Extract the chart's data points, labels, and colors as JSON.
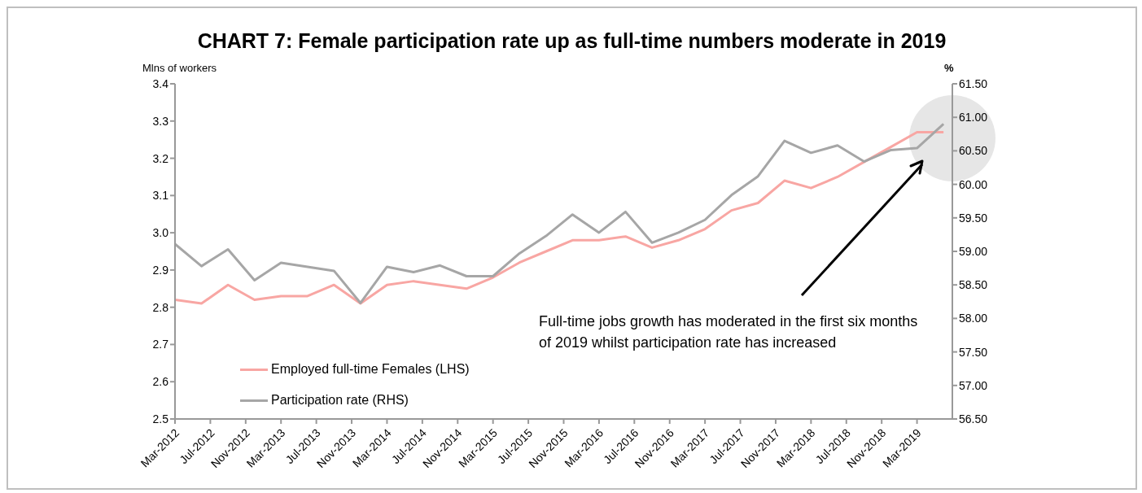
{
  "chart_data": {
    "type": "line",
    "title": "CHART 7: Female participation rate up as full-time numbers moderate in 2019",
    "ylabel": "Mlns of workers",
    "y2label": "%",
    "x": [
      "2012-03",
      "2012-06",
      "2012-09",
      "2012-12",
      "2013-03",
      "2013-06",
      "2013-09",
      "2013-12",
      "2014-03",
      "2014-06",
      "2014-09",
      "2014-12",
      "2015-03",
      "2015-06",
      "2015-09",
      "2015-12",
      "2016-03",
      "2016-06",
      "2016-09",
      "2016-12",
      "2017-03",
      "2017-06",
      "2017-09",
      "2017-12",
      "2018-03",
      "2018-06",
      "2018-09",
      "2018-12",
      "2019-03",
      "2019-06"
    ],
    "series": [
      {
        "name": "Employed full-time Females (LHS)",
        "color": "#f8a6a3",
        "values": [
          2.82,
          2.81,
          2.86,
          2.82,
          2.83,
          2.83,
          2.86,
          2.81,
          2.86,
          2.87,
          2.86,
          2.85,
          2.88,
          2.92,
          2.95,
          2.98,
          2.98,
          2.99,
          2.96,
          2.98,
          3.01,
          3.06,
          3.08,
          3.14,
          3.12,
          3.15,
          3.19,
          3.23,
          3.27,
          3.27
        ]
      },
      {
        "name": "Participation rate (RHS)",
        "color": "#a6a6a6",
        "axis": "y2",
        "values": [
          59.11,
          58.78,
          59.03,
          58.57,
          58.83,
          58.77,
          58.71,
          58.23,
          58.77,
          58.69,
          58.79,
          58.63,
          58.63,
          58.97,
          59.23,
          59.55,
          59.28,
          59.59,
          59.13,
          59.28,
          59.47,
          59.84,
          60.12,
          60.65,
          60.47,
          60.58,
          60.34,
          60.51,
          60.54,
          60.9
        ]
      }
    ],
    "xlim": [
      "2012-03",
      "2019-07"
    ],
    "xticks": [
      {
        "value": "2012-03",
        "label": "Mar-2012"
      },
      {
        "value": "2012-07",
        "label": "Jul-2012"
      },
      {
        "value": "2012-11",
        "label": "Nov-2012"
      },
      {
        "value": "2013-03",
        "label": "Mar-2013"
      },
      {
        "value": "2013-07",
        "label": "Jul-2013"
      },
      {
        "value": "2013-11",
        "label": "Nov-2013"
      },
      {
        "value": "2014-03",
        "label": "Mar-2014"
      },
      {
        "value": "2014-07",
        "label": "Jul-2014"
      },
      {
        "value": "2014-11",
        "label": "Nov-2014"
      },
      {
        "value": "2015-03",
        "label": "Mar-2015"
      },
      {
        "value": "2015-07",
        "label": "Jul-2015"
      },
      {
        "value": "2015-11",
        "label": "Nov-2015"
      },
      {
        "value": "2016-03",
        "label": "Mar-2016"
      },
      {
        "value": "2016-07",
        "label": "Jul-2016"
      },
      {
        "value": "2016-11",
        "label": "Nov-2016"
      },
      {
        "value": "2017-03",
        "label": "Mar-2017"
      },
      {
        "value": "2017-07",
        "label": "Jul-2017"
      },
      {
        "value": "2017-11",
        "label": "Nov-2017"
      },
      {
        "value": "2018-03",
        "label": "Mar-2018"
      },
      {
        "value": "2018-07",
        "label": "Jul-2018"
      },
      {
        "value": "2018-11",
        "label": "Nov-2018"
      },
      {
        "value": "2019-03",
        "label": "Mar-2019"
      }
    ],
    "ylim": [
      2.5,
      3.4
    ],
    "yticks": [
      2.5,
      2.6,
      2.7,
      2.8,
      2.9,
      {
        "value": 3.0,
        "label": "3.0"
      },
      3.1,
      3.2,
      3.3,
      3.4
    ],
    "y2lim": [
      56.5,
      61.5
    ],
    "y2ticks": [
      {
        "value": 56.5,
        "label": "56.50"
      },
      {
        "value": 57,
        "label": "57.00"
      },
      {
        "value": 57.5,
        "label": "57.50"
      },
      {
        "value": 58,
        "label": "58.00"
      },
      {
        "value": 58.5,
        "label": "58.50"
      },
      {
        "value": 59,
        "label": "59.00"
      },
      {
        "value": 59.5,
        "label": "59.50"
      },
      {
        "value": 60,
        "label": "60.00"
      },
      {
        "value": 60.5,
        "label": "60.50"
      },
      {
        "value": 61,
        "label": "61.00"
      },
      {
        "value": 61.5,
        "label": "61.50"
      }
    ],
    "annotations": [
      "Full-time jobs growth has moderated in the first six months of 2019 whilst participation rate has increased"
    ],
    "grid": false,
    "legend": "bottom left",
    "marker": "none",
    "line_style": "solid"
  }
}
